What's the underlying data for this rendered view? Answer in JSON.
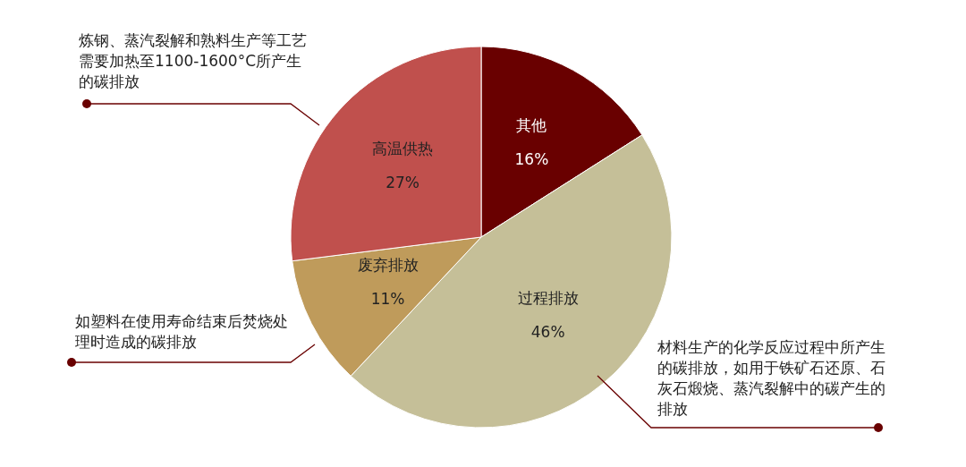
{
  "chart_data": {
    "type": "pie",
    "categories": [
      "其他",
      "过程排放",
      "废弃排放",
      "高温供热"
    ],
    "values": [
      16,
      46,
      11,
      27
    ],
    "value_labels": [
      "16%",
      "46%",
      "11%",
      "27%"
    ],
    "colors": [
      "#690000",
      "#c5bf98",
      "#bf9b5b",
      "#c0504d"
    ],
    "annotations": [
      "炼钢、蒸汽裂解和熟料生产等工艺需要加热至1100-1600°C所产生的碳排放",
      "如塑料在使用寿命结束后焚烧处理时造成的碳排放",
      "材料生产的化学反应过程中所产生的碳排放，如用于铁矿石还原、石灰石煅烧、蒸汽裂解中的碳产生的排放"
    ]
  }
}
